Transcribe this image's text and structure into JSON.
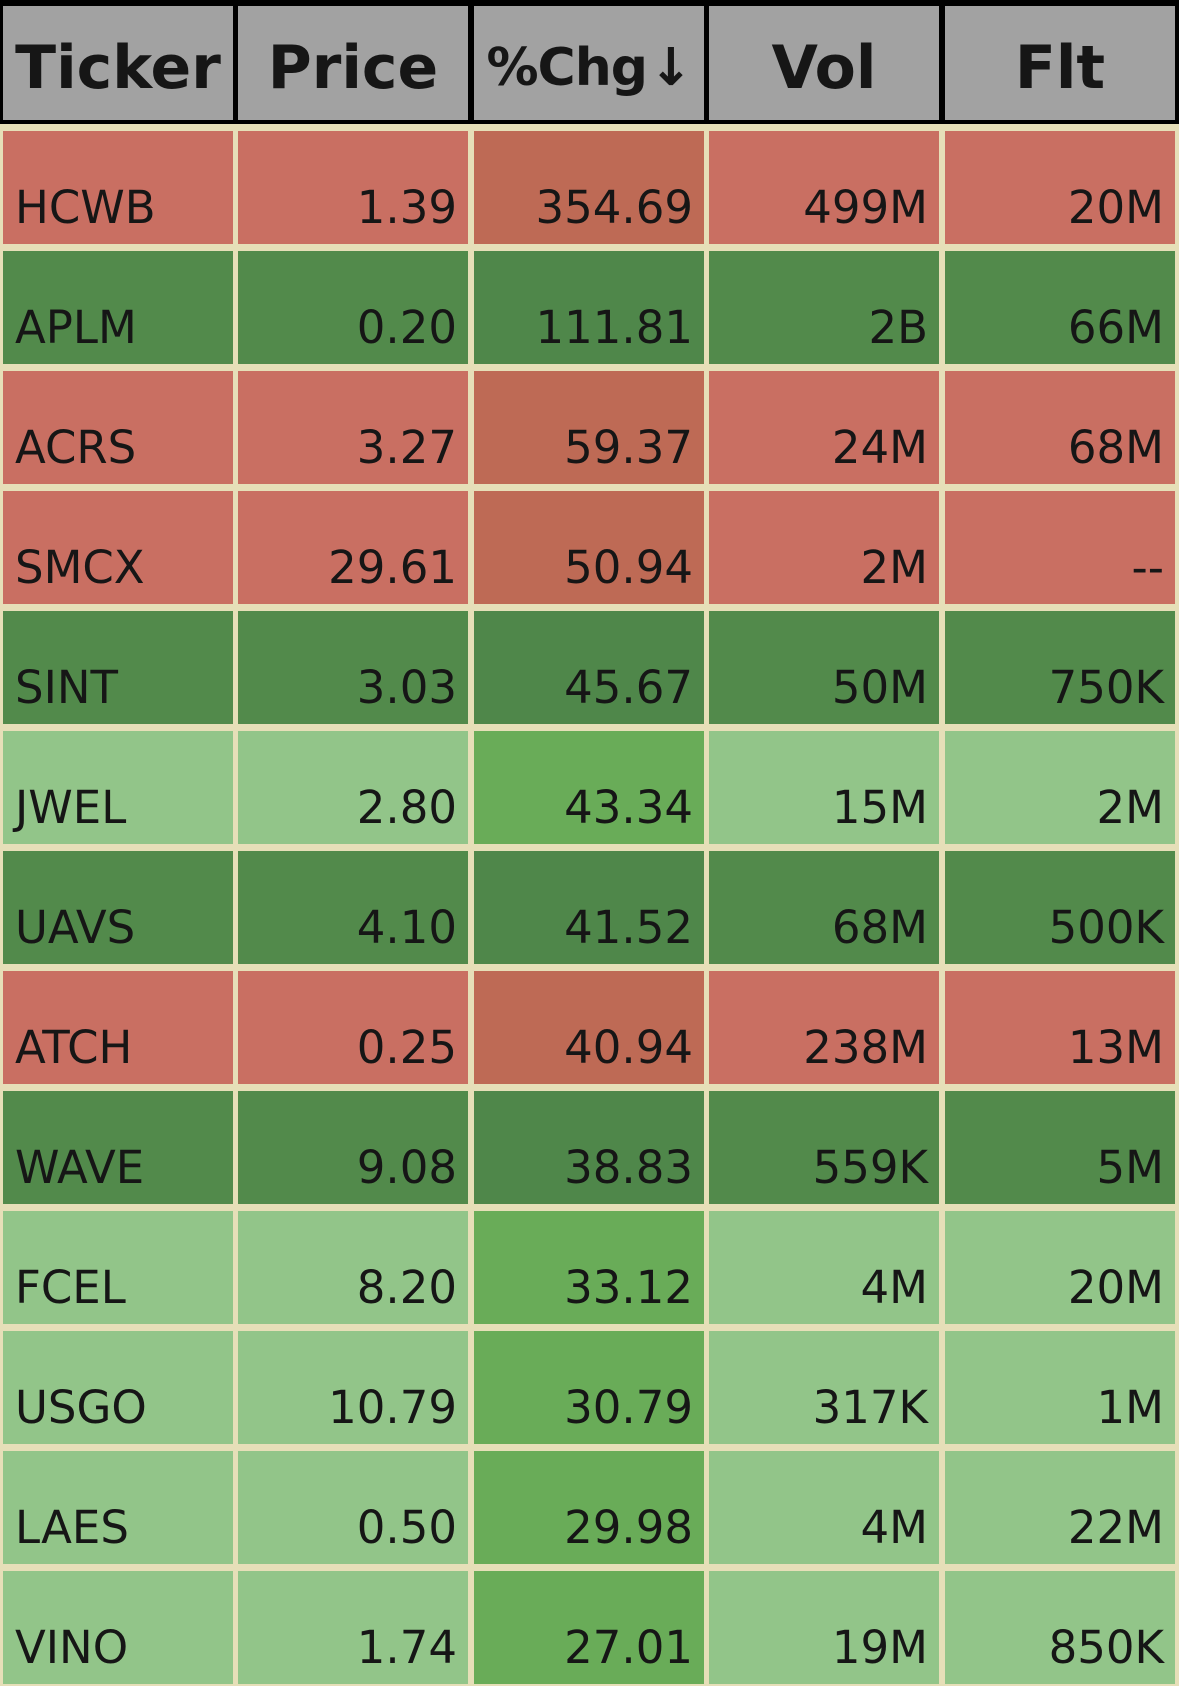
{
  "table": {
    "columns": [
      {
        "key": "ticker",
        "label": "Ticker"
      },
      {
        "key": "price",
        "label": "Price"
      },
      {
        "key": "chg",
        "label": "%Chg",
        "sort_glyph": "↓"
      },
      {
        "key": "vol",
        "label": "Vol"
      },
      {
        "key": "flt",
        "label": "Flt"
      }
    ],
    "palette": {
      "header_bg": "#a2a2a2",
      "grid_line": "#e6dfb8",
      "border_dark": "#000000",
      "red_cell": "#c96f62",
      "red_chg_cell": "#be6a55",
      "dark_green_cell": "#528a4b",
      "dark_green_chg_cell": "#4f874a",
      "light_green_cell": "#92c589",
      "light_green_chg_cell": "#69ac58",
      "text": "#161616"
    },
    "rows": [
      {
        "ticker": "HCWB",
        "price": "1.39",
        "chg": "354.69",
        "vol": "499M",
        "flt": "20M",
        "tone": "red"
      },
      {
        "ticker": "APLM",
        "price": "0.20",
        "chg": "111.81",
        "vol": "2B",
        "flt": "66M",
        "tone": "dark_green"
      },
      {
        "ticker": "ACRS",
        "price": "3.27",
        "chg": "59.37",
        "vol": "24M",
        "flt": "68M",
        "tone": "red"
      },
      {
        "ticker": "SMCX",
        "price": "29.61",
        "chg": "50.94",
        "vol": "2M",
        "flt": "--",
        "tone": "red"
      },
      {
        "ticker": "SINT",
        "price": "3.03",
        "chg": "45.67",
        "vol": "50M",
        "flt": "750K",
        "tone": "dark_green"
      },
      {
        "ticker": "JWEL",
        "price": "2.80",
        "chg": "43.34",
        "vol": "15M",
        "flt": "2M",
        "tone": "light_green"
      },
      {
        "ticker": "UAVS",
        "price": "4.10",
        "chg": "41.52",
        "vol": "68M",
        "flt": "500K",
        "tone": "dark_green"
      },
      {
        "ticker": "ATCH",
        "price": "0.25",
        "chg": "40.94",
        "vol": "238M",
        "flt": "13M",
        "tone": "red"
      },
      {
        "ticker": "WAVE",
        "price": "9.08",
        "chg": "38.83",
        "vol": "559K",
        "flt": "5M",
        "tone": "dark_green"
      },
      {
        "ticker": "FCEL",
        "price": "8.20",
        "chg": "33.12",
        "vol": "4M",
        "flt": "20M",
        "tone": "light_green"
      },
      {
        "ticker": "USGO",
        "price": "10.79",
        "chg": "30.79",
        "vol": "317K",
        "flt": "1M",
        "tone": "light_green"
      },
      {
        "ticker": "LAES",
        "price": "0.50",
        "chg": "29.98",
        "vol": "4M",
        "flt": "22M",
        "tone": "light_green"
      },
      {
        "ticker": "VINO",
        "price": "1.74",
        "chg": "27.01",
        "vol": "19M",
        "flt": "850K",
        "tone": "light_green"
      }
    ]
  }
}
